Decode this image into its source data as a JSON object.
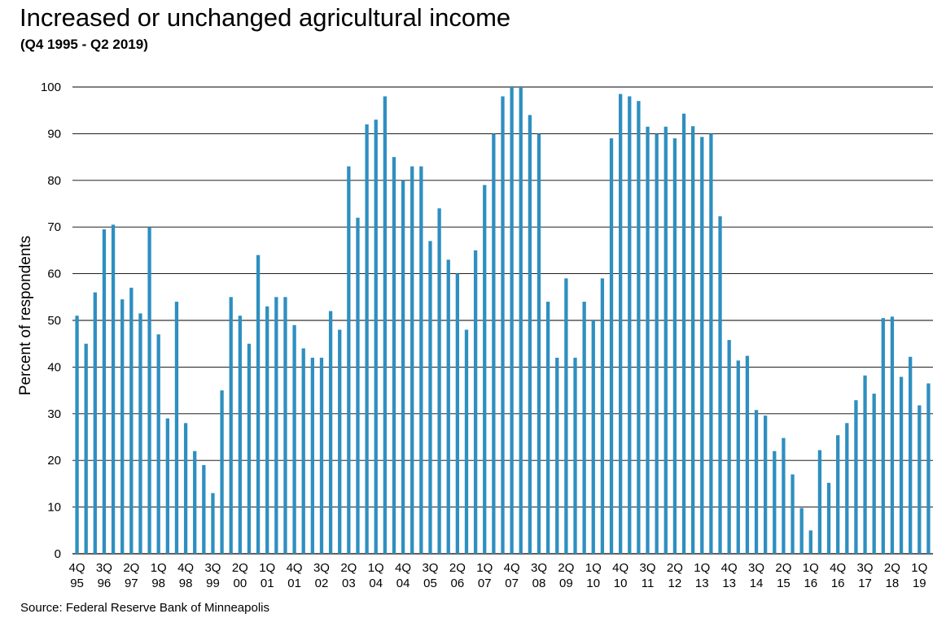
{
  "title": "Increased or unchanged agricultural income",
  "subtitle": "(Q4 1995 - Q2 2019)",
  "source": "Source: Federal Reserve Bank of Minneapolis",
  "chart_data": {
    "type": "bar",
    "title": "Increased or unchanged agricultural income",
    "subtitle": "(Q4 1995 - Q2 2019)",
    "ylabel": "Percent of respondents",
    "xlabel": "",
    "ylim": [
      0,
      100
    ],
    "yticks": [
      0,
      10,
      20,
      30,
      40,
      50,
      60,
      70,
      80,
      90,
      100
    ],
    "grid": true,
    "bar_color": "#2e8fc0",
    "categories": [
      "4Q95",
      "1Q96",
      "2Q96",
      "3Q96",
      "4Q96",
      "1Q97",
      "2Q97",
      "3Q97",
      "4Q97",
      "1Q98",
      "2Q98",
      "3Q98",
      "4Q98",
      "1Q99",
      "2Q99",
      "3Q99",
      "4Q99",
      "1Q00",
      "2Q00",
      "3Q00",
      "4Q00",
      "1Q01",
      "2Q01",
      "3Q01",
      "4Q01",
      "1Q02",
      "2Q02",
      "3Q02",
      "4Q02",
      "1Q03",
      "2Q03",
      "3Q03",
      "4Q03",
      "1Q04",
      "2Q04",
      "3Q04",
      "4Q04",
      "1Q05",
      "2Q05",
      "3Q05",
      "4Q05",
      "1Q06",
      "2Q06",
      "3Q06",
      "4Q06",
      "1Q07",
      "2Q07",
      "3Q07",
      "4Q07",
      "1Q08",
      "2Q08",
      "3Q08",
      "4Q08",
      "1Q09",
      "2Q09",
      "3Q09",
      "4Q09",
      "1Q10",
      "2Q10",
      "3Q10",
      "4Q10",
      "1Q11",
      "2Q11",
      "3Q11",
      "4Q11",
      "1Q12",
      "2Q12",
      "3Q12",
      "4Q12",
      "1Q13",
      "2Q13",
      "3Q13",
      "4Q13",
      "1Q14",
      "2Q14",
      "3Q14",
      "4Q14",
      "1Q15",
      "2Q15",
      "3Q15",
      "4Q15",
      "1Q16",
      "2Q16",
      "3Q16",
      "4Q16",
      "1Q17",
      "2Q17",
      "3Q17",
      "4Q17",
      "1Q18",
      "2Q18",
      "3Q18",
      "4Q18",
      "1Q19",
      "2Q19"
    ],
    "values": [
      51,
      45,
      56,
      69.5,
      70.5,
      54.5,
      57,
      51.5,
      70,
      47,
      29,
      54,
      28,
      22,
      19,
      13,
      35,
      55,
      51,
      45,
      64,
      53,
      55,
      55,
      49,
      44,
      42,
      42,
      52,
      48,
      83,
      72,
      92,
      93,
      98,
      85,
      80,
      83,
      83,
      67,
      74,
      63,
      60,
      48,
      65,
      79,
      90,
      98,
      100,
      100,
      94,
      90,
      54,
      42,
      59,
      42,
      54,
      50,
      59,
      89,
      98.5,
      98,
      97,
      91.5,
      90,
      91.5,
      89,
      94.3,
      91.6,
      89.3,
      90,
      72.3,
      45.8,
      41.4,
      42.4,
      30.8,
      29.6,
      22,
      24.8,
      17,
      9.8,
      5,
      22.2,
      15.2,
      25.4,
      28,
      32.9,
      38.2,
      34.3,
      50.5,
      50.8,
      37.9,
      42.2,
      31.8,
      36.5
    ],
    "x_tick_labels": [
      {
        "category": "4Q95",
        "line1": "4Q",
        "line2": "95"
      },
      {
        "category": "3Q96",
        "line1": "3Q",
        "line2": "96"
      },
      {
        "category": "2Q97",
        "line1": "2Q",
        "line2": "97"
      },
      {
        "category": "1Q98",
        "line1": "1Q",
        "line2": "98"
      },
      {
        "category": "4Q98",
        "line1": "4Q",
        "line2": "98"
      },
      {
        "category": "3Q99",
        "line1": "3Q",
        "line2": "99"
      },
      {
        "category": "2Q00",
        "line1": "2Q",
        "line2": "00"
      },
      {
        "category": "1Q01",
        "line1": "1Q",
        "line2": "01"
      },
      {
        "category": "4Q01",
        "line1": "4Q",
        "line2": "01"
      },
      {
        "category": "3Q02",
        "line1": "3Q",
        "line2": "02"
      },
      {
        "category": "2Q03",
        "line1": "2Q",
        "line2": "03"
      },
      {
        "category": "1Q04",
        "line1": "1Q",
        "line2": "04"
      },
      {
        "category": "4Q04",
        "line1": "4Q",
        "line2": "04"
      },
      {
        "category": "3Q05",
        "line1": "3Q",
        "line2": "05"
      },
      {
        "category": "2Q06",
        "line1": "2Q",
        "line2": "06"
      },
      {
        "category": "1Q07",
        "line1": "1Q",
        "line2": "07"
      },
      {
        "category": "4Q07",
        "line1": "4Q",
        "line2": "07"
      },
      {
        "category": "3Q08",
        "line1": "3Q",
        "line2": "08"
      },
      {
        "category": "2Q09",
        "line1": "2Q",
        "line2": "09"
      },
      {
        "category": "1Q10",
        "line1": "1Q",
        "line2": "10"
      },
      {
        "category": "4Q10",
        "line1": "4Q",
        "line2": "10"
      },
      {
        "category": "3Q11",
        "line1": "3Q",
        "line2": "11"
      },
      {
        "category": "2Q12",
        "line1": "2Q",
        "line2": "12"
      },
      {
        "category": "1Q13",
        "line1": "1Q",
        "line2": "13"
      },
      {
        "category": "4Q13",
        "line1": "4Q",
        "line2": "13"
      },
      {
        "category": "3Q14",
        "line1": "3Q",
        "line2": "14"
      },
      {
        "category": "2Q15",
        "line1": "2Q",
        "line2": "15"
      },
      {
        "category": "1Q16",
        "line1": "1Q",
        "line2": "16"
      },
      {
        "category": "4Q16",
        "line1": "4Q",
        "line2": "16"
      },
      {
        "category": "3Q17",
        "line1": "3Q",
        "line2": "17"
      },
      {
        "category": "2Q18",
        "line1": "2Q",
        "line2": "18"
      },
      {
        "category": "1Q19",
        "line1": "1Q",
        "line2": "19"
      }
    ]
  }
}
